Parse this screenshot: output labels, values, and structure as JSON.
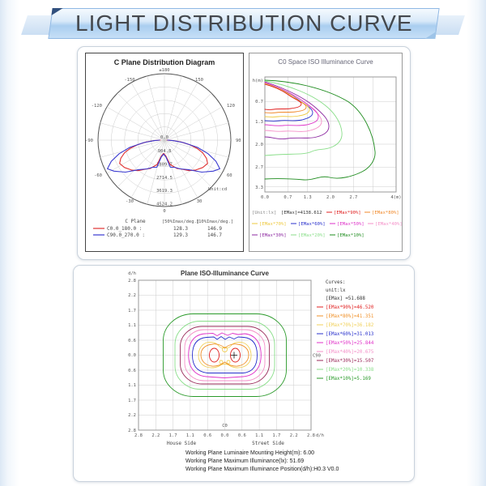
{
  "header": {
    "title": "LIGHT DISTRIBUTION CURVE"
  },
  "chart_data": [
    {
      "id": "c_plane_polar",
      "type": "line",
      "title": "C Plane Distribution Diagram",
      "unit_label": "Unit:cd",
      "angle_labels": [
        "±180",
        "-150",
        "150",
        "-120",
        "120",
        "-90",
        "90",
        "-60",
        "60",
        "-30",
        "30",
        "0"
      ],
      "radial_tick_labels": [
        "0.0",
        "904.8",
        "1809.7",
        "2714.5",
        "3619.3",
        "4524.2"
      ],
      "radial_ticks_cd": [
        0,
        904.8,
        1809.7,
        2714.5,
        3619.3,
        4524.2
      ],
      "legend_header": {
        "plane": "C Plane",
        "col50": "[50%Imax/deg.]",
        "col10": "[10%Imax/deg.]"
      },
      "series": [
        {
          "label": "C0.0_180.0 :",
          "color": "#e03232",
          "beam_50pct_deg": 128.3,
          "beam_10pct_deg": 146.9
        },
        {
          "label": "C90.0_270.0 :",
          "color": "#3a3ad0",
          "beam_50pct_deg": 129.3,
          "beam_10pct_deg": 146.7
        }
      ]
    },
    {
      "id": "c0_space_iso",
      "type": "area",
      "title": "C0 Space ISO Illuminance Curve",
      "y_axis_label": "h(m)",
      "y_tick_labels": [
        "0.7",
        "1.3",
        "2.0",
        "2.7",
        "3.3"
      ],
      "x_tick_labels": [
        "0.0",
        "0.7",
        "1.3",
        "2.0",
        "2.7",
        "4(m)"
      ],
      "unit_label": "[Unit:lx]",
      "emax_label": "[EMax]=4138.612",
      "emax_lx": 4138.612,
      "levels": [
        {
          "label": "[EMax*90%]",
          "color": "#e02020"
        },
        {
          "label": "[EMax*80%]",
          "color": "#f08828"
        },
        {
          "label": "[EMax*70%]",
          "color": "#eec83c"
        },
        {
          "label": "[EMax*60%]",
          "color": "#2830cc"
        },
        {
          "label": "[EMax*50%]",
          "color": "#de32c8"
        },
        {
          "label": "[EMax*40%]",
          "color": "#f490c8"
        },
        {
          "label": "[EMax*30%]",
          "color": "#8c28a0"
        },
        {
          "label": "[EMax*20%]",
          "color": "#8ade8a"
        },
        {
          "label": "[EMax*10%]",
          "color": "#1e8c1e"
        }
      ]
    },
    {
      "id": "plane_iso",
      "type": "heatmap",
      "title": "Plane ISO-Illuminance Curve",
      "axis_label_y": "d/h",
      "axis_label_x": "d/h",
      "y_tick_labels": [
        "2.8",
        "2.2",
        "1.7",
        "1.1",
        "0.6",
        "0.0",
        "0.6",
        "1.1",
        "1.7",
        "2.2",
        "2.8"
      ],
      "x_tick_labels": [
        "2.8",
        "2.2",
        "1.7",
        "1.1",
        "0.6",
        "0.0",
        "0.6",
        "1.1",
        "1.7",
        "2.2",
        "2.8"
      ],
      "c0_label": "C0",
      "c90_label": "C90",
      "house_side_label": "House Side",
      "street_side_label": "Street Side",
      "legend_title": "Curves:",
      "legend_unit": "unit:lx",
      "emax_label": "[EMax] =51.688",
      "emax_lx": 51.688,
      "levels": [
        {
          "label": "[EMax*90%]=46.520",
          "value": 46.52,
          "color": "#e02020"
        },
        {
          "label": "[EMax*80%]=41.351",
          "value": 41.351,
          "color": "#f09028"
        },
        {
          "label": "[EMax*70%]=36.182",
          "value": 36.182,
          "color": "#f0d05a"
        },
        {
          "label": "[EMax*60%]=31.013",
          "value": 31.013,
          "color": "#2830cc"
        },
        {
          "label": "[EMax*50%]=25.844",
          "value": 25.844,
          "color": "#e032c8"
        },
        {
          "label": "[EMax*40%]=20.675",
          "value": 20.675,
          "color": "#f490c8"
        },
        {
          "label": "[EMax*30%]=15.507",
          "value": 15.507,
          "color": "#9a2a5a"
        },
        {
          "label": "[EMax*20%]=10.338",
          "value": 10.338,
          "color": "#8ade8a"
        },
        {
          "label": "[EMax*10%]=5.169",
          "value": 5.169,
          "color": "#2a9a2a"
        }
      ],
      "footer": [
        "Working Plane Luminaire Mounting Height(m): 6.00",
        "Working Plane Maximum Illuminance(lx): 51.69",
        "Working Plane Maximum Illuminance Position(d/h):H0.3 V0.0"
      ]
    }
  ]
}
